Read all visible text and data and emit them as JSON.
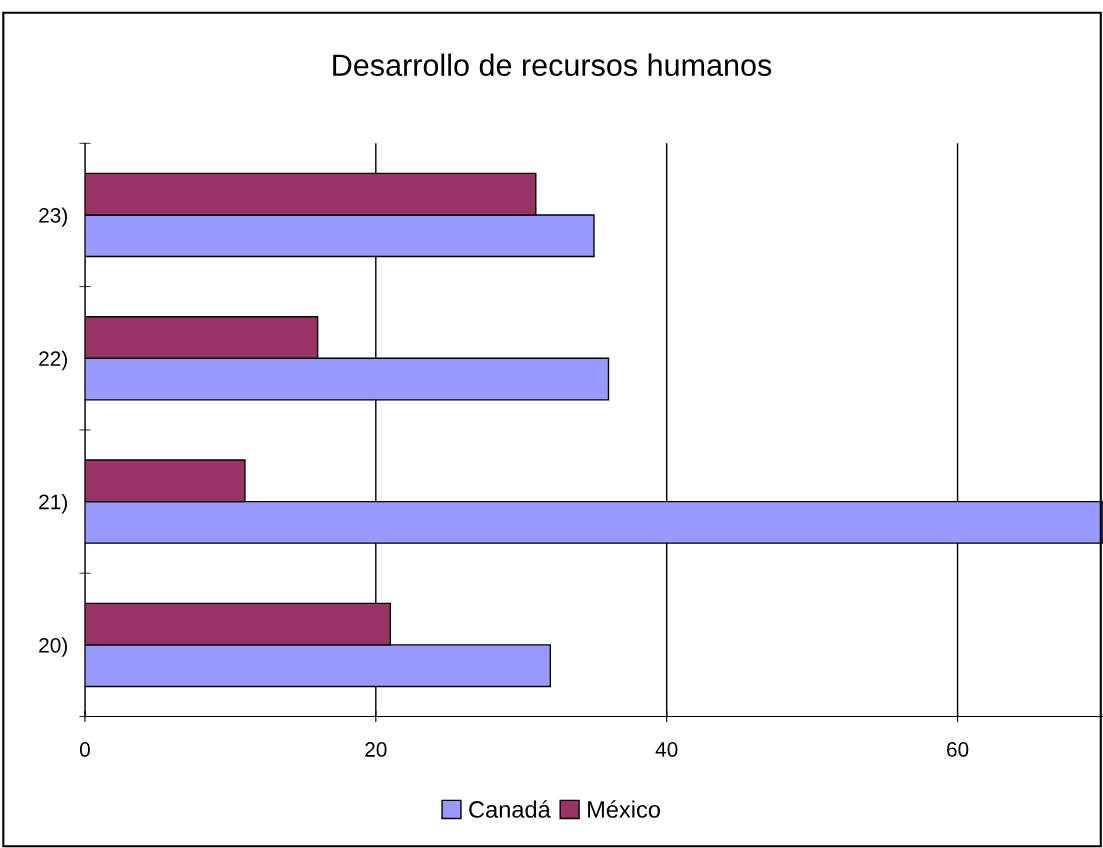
{
  "chart_data": {
    "type": "bar",
    "orientation": "horizontal",
    "title": "Desarrollo de recursos humanos",
    "categories": [
      "23)",
      "22)",
      "21)",
      "20)"
    ],
    "series": [
      {
        "name": "Canadá",
        "color": "#9999ff",
        "values": [
          35,
          36,
          70,
          32
        ]
      },
      {
        "name": "México",
        "color": "#993366",
        "values": [
          31,
          16,
          11,
          21
        ]
      }
    ],
    "xlim": [
      0,
      70
    ],
    "xticks": [
      0,
      20,
      40,
      60
    ],
    "grid": "x",
    "legend": "bottom"
  }
}
